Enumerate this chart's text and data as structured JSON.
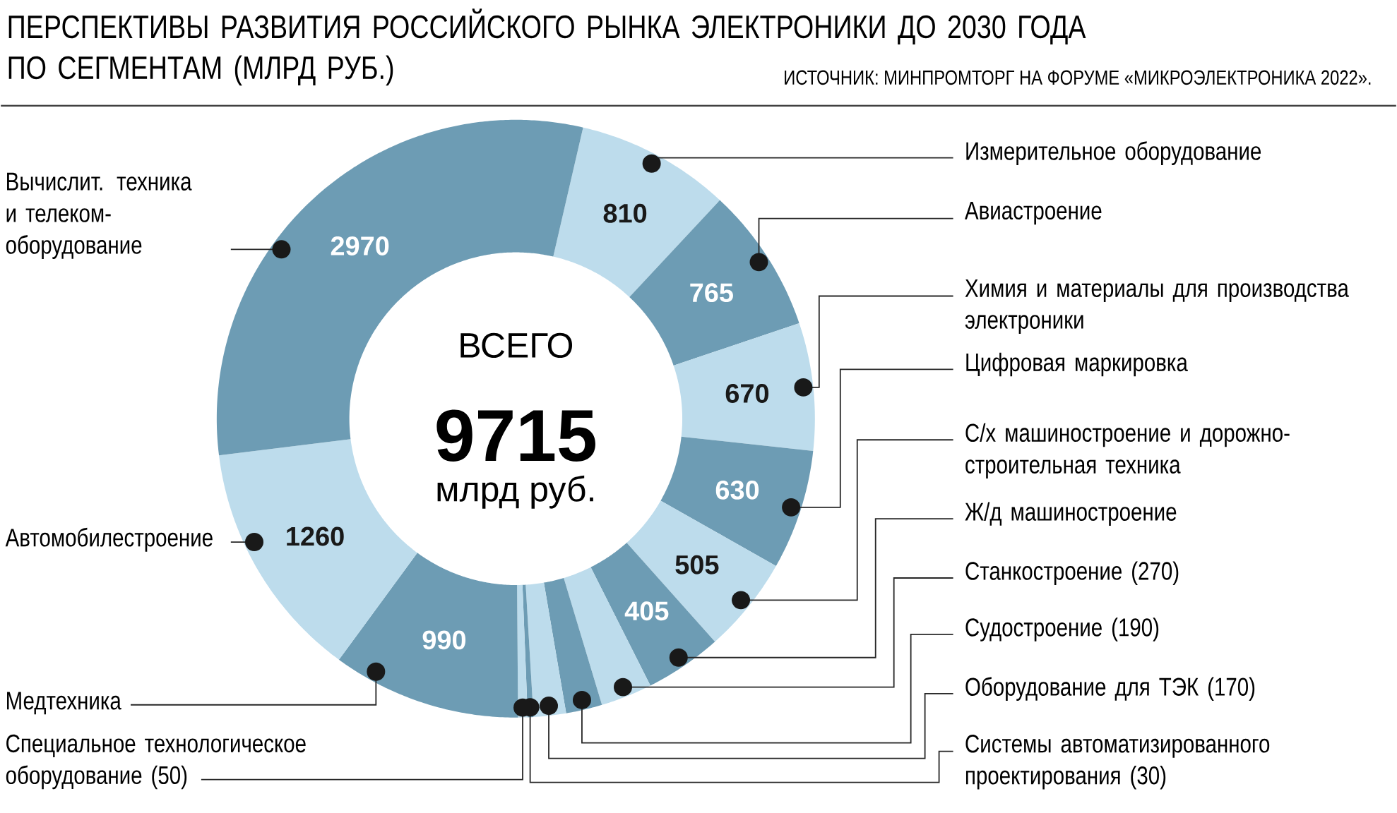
{
  "chart_data": {
    "type": "donut",
    "title": "ПЕРСПЕКТИВЫ РАЗВИТИЯ РОССИЙСКОГО РЫНКА ЭЛЕКТРОНИКИ ДО 2030 ГОДА ПО СЕГМЕНТАМ (МЛРД РУБ.)",
    "subtitle": "ИСТОЧНИК: МИНПРОМТОРГ НА ФОРУМЕ «МИКРОЭЛЕКТРОНИКА 2022».",
    "categories": [
      "Измерительное оборудование",
      "Авиастроение",
      "Химия и материалы для производства электроники",
      "Цифровая маркировка",
      "С/х машиностроение и дорожно-строительная техника",
      "Ж/д машиностроение",
      "Станкостроение (270)",
      "Судостроение (190)",
      "Оборудование для ТЭК (170)",
      "Системы автоматизированного проектирования (30)",
      "Специальное технологическое оборудование (50)",
      "Медтехника",
      "Автомобилестроение",
      "Вычислит. техника и телеком-оборудование"
    ],
    "values": [
      810,
      765,
      670,
      630,
      505,
      405,
      270,
      190,
      170,
      30,
      50,
      990,
      1260,
      2970
    ],
    "colors": [
      "#bddcec",
      "#6d9cb4",
      "#bddcec",
      "#6d9cb4",
      "#bddcec",
      "#6d9cb4",
      "#bddcec",
      "#6d9cb4",
      "#bddcec",
      "#6d9cb4",
      "#bddcec",
      "#6d9cb4",
      "#bddcec",
      "#6d9cb4"
    ],
    "value_labels": [
      "810",
      "765",
      "670",
      "630",
      "505",
      "405",
      null,
      null,
      null,
      null,
      null,
      "990",
      "1260",
      "2970"
    ],
    "annotations": [
      "ВСЕГО",
      "9715",
      "млрд руб."
    ]
  }
}
